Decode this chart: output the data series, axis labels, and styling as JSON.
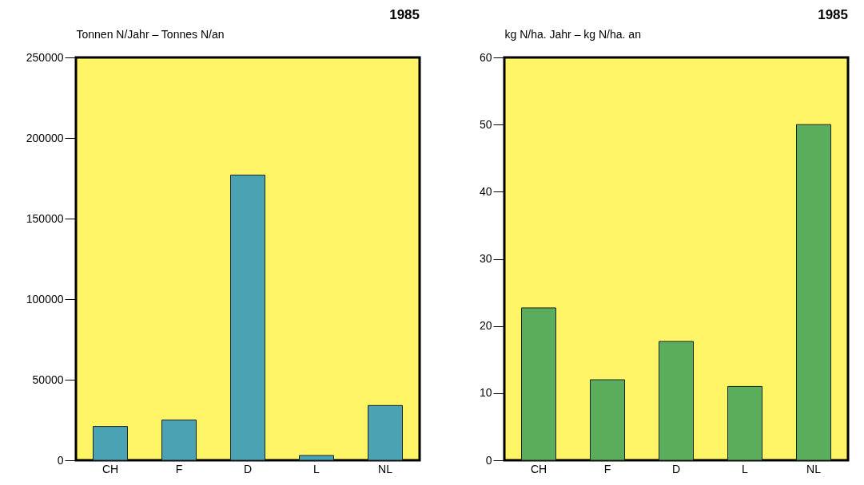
{
  "chart_data": [
    {
      "type": "bar",
      "title": "1985",
      "ylabel": "Tonnen N/Jahr – Tonnes N/an",
      "categories": [
        "CH",
        "F",
        "D",
        "L",
        "NL"
      ],
      "values": [
        21000,
        25000,
        177000,
        3000,
        34000
      ],
      "color": "#4aa3b3",
      "ylim": [
        0,
        250000
      ],
      "yticks": [
        0,
        50000,
        100000,
        150000,
        200000,
        250000
      ],
      "grid": false
    },
    {
      "type": "bar",
      "title": "1985",
      "ylabel": "kg N/ha. Jahr – kg N/ha. an",
      "categories": [
        "CH",
        "F",
        "D",
        "L",
        "NL"
      ],
      "values": [
        22.7,
        12,
        17.7,
        11,
        50
      ],
      "color": "#5aad5a",
      "ylim": [
        0,
        60
      ],
      "yticks": [
        0,
        10,
        20,
        30,
        40,
        50,
        60
      ],
      "grid": false
    }
  ]
}
